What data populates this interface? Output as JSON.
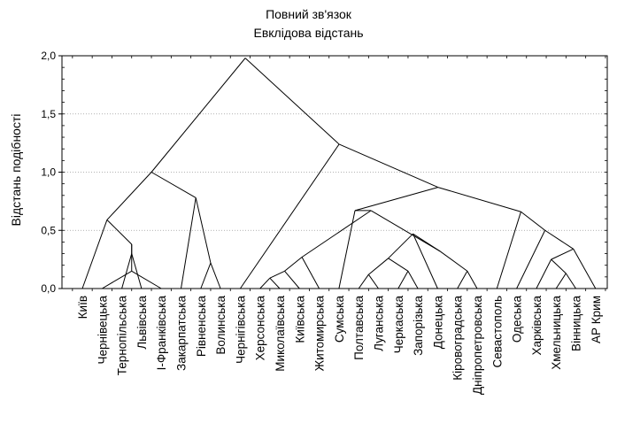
{
  "chart_data": {
    "type": "dendrogram",
    "title": "Повний зв'язок",
    "subtitle": "Евклідова відстань",
    "xlabel": "",
    "ylabel": "Відстань подібності",
    "ylim": [
      0,
      2.0
    ],
    "yticks": [
      "0,0",
      "0,5",
      "1,0",
      "1,5",
      "2,0"
    ],
    "ytick_values": [
      0,
      0.5,
      1.0,
      1.5,
      2.0
    ],
    "grid": true,
    "leaves": [
      "Київ",
      "Чернівецька",
      "Тернопільська",
      "Львівська",
      "І-Франківська",
      "Закарпатська",
      "Рівненська",
      "Волинська",
      "Чернігівська",
      "Херсонська",
      "Миколаївська",
      "Київська",
      "Житомирська",
      "Сумська",
      "Полтавська",
      "Луганська",
      "Черкаська",
      "Запорізька",
      "Донецька",
      "Кіровоградська",
      "Дніпропетровська",
      "Севастополь",
      "Одеська",
      "Харківська",
      "Хмельницька",
      "Вінницька",
      "АР Крим"
    ],
    "merges": [
      {
        "a": "L2",
        "b": "L3",
        "h": 0.3
      },
      {
        "a": "L1",
        "b": "L4",
        "h": 0.15
      },
      {
        "a": "M0",
        "b": "M1",
        "h": 0.38
      },
      {
        "a": "L0",
        "b": "M2",
        "h": 0.59
      },
      {
        "a": "L6",
        "b": "L7",
        "h": 0.22
      },
      {
        "a": "L5",
        "b": "M4",
        "h": 0.78
      },
      {
        "a": "M3",
        "b": "M5",
        "h": 1.0
      },
      {
        "a": "L9",
        "b": "L10",
        "h": 0.09
      },
      {
        "a": "M7",
        "b": "L11",
        "h": 0.15
      },
      {
        "a": "M8",
        "b": "L12",
        "h": 0.27
      },
      {
        "a": "L14",
        "b": "L15",
        "h": 0.12
      },
      {
        "a": "L16",
        "b": "L17",
        "h": 0.15
      },
      {
        "a": "M10",
        "b": "M11",
        "h": 0.26
      },
      {
        "a": "M12",
        "b": "L18",
        "h": 0.47
      },
      {
        "a": "L19",
        "b": "L20",
        "h": 0.15
      },
      {
        "a": "M13",
        "b": "M14",
        "h": 0.32
      },
      {
        "a": "M9",
        "b": "M15",
        "h": 0.67
      },
      {
        "a": "L13",
        "b": "M16",
        "h": 0.67
      },
      {
        "a": "L24",
        "b": "L25",
        "h": 0.13
      },
      {
        "a": "L23",
        "b": "M18",
        "h": 0.25
      },
      {
        "a": "M19",
        "b": "L26",
        "h": 0.34
      },
      {
        "a": "L22",
        "b": "M20",
        "h": 0.5
      },
      {
        "a": "L21",
        "b": "M21",
        "h": 0.66
      },
      {
        "a": "M17",
        "b": "M22",
        "h": 0.87
      },
      {
        "a": "L8",
        "b": "M23",
        "h": 1.24
      },
      {
        "a": "M6",
        "b": "M24",
        "h": 1.98
      }
    ]
  }
}
